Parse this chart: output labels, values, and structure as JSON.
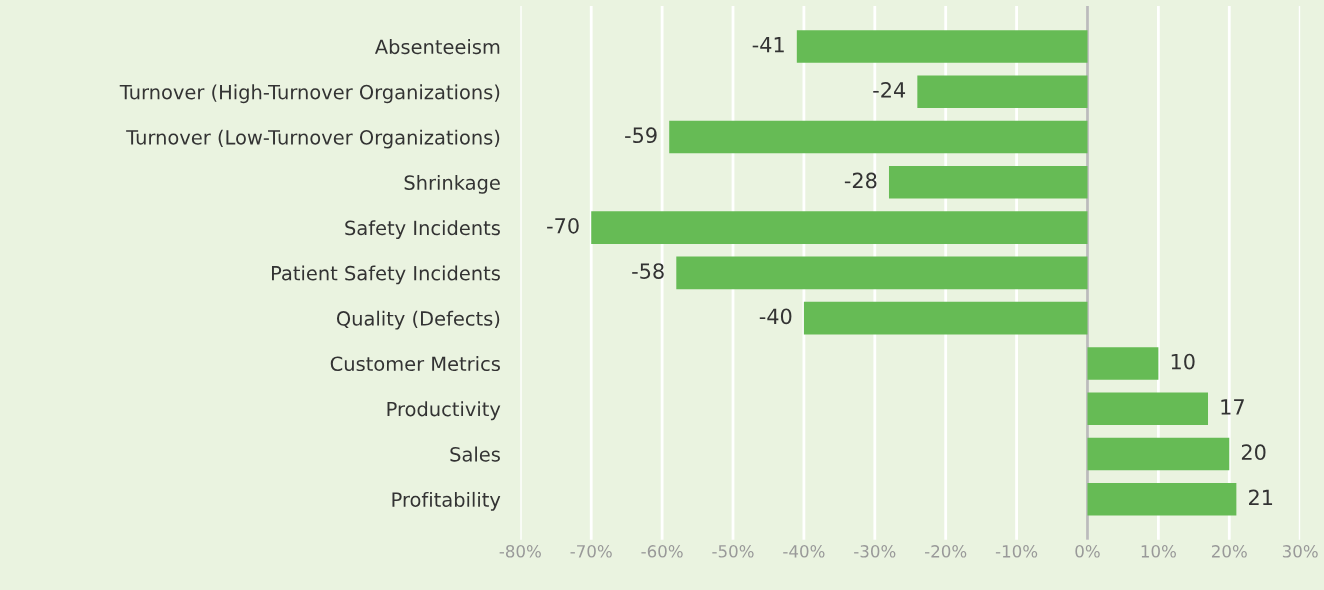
{
  "chart_data": {
    "type": "bar",
    "orientation": "horizontal",
    "categories": [
      "Absenteeism",
      "Turnover (High-Turnover Organizations)",
      "Turnover (Low-Turnover Organizations)",
      "Shrinkage",
      "Safety Incidents",
      "Patient Safety Incidents",
      "Quality (Defects)",
      "Customer Metrics",
      "Productivity",
      "Sales",
      "Profitability"
    ],
    "values": [
      -41,
      -24,
      -59,
      -28,
      -70,
      -58,
      -40,
      10,
      17,
      20,
      21
    ],
    "color": "#66bb55",
    "xlim": [
      -80,
      30
    ],
    "xticks": [
      {
        "value": -80,
        "label": "-80%"
      },
      {
        "value": -70,
        "label": "-70%"
      },
      {
        "value": -60,
        "label": "-60%"
      },
      {
        "value": -50,
        "label": "-50%"
      },
      {
        "value": -40,
        "label": "-40%"
      },
      {
        "value": -30,
        "label": "-30%"
      },
      {
        "value": -20,
        "label": "-20%"
      },
      {
        "value": -10,
        "label": "-10%"
      },
      {
        "value": 0,
        "label": "0%"
      },
      {
        "value": 10,
        "label": "10%"
      },
      {
        "value": 20,
        "label": "20%"
      },
      {
        "value": 30,
        "label": "30%"
      }
    ],
    "ref_lines": [
      {
        "axis": "x",
        "value": 0,
        "color": "#bbbbbb"
      }
    ],
    "grid": "x",
    "data_labels": true
  }
}
